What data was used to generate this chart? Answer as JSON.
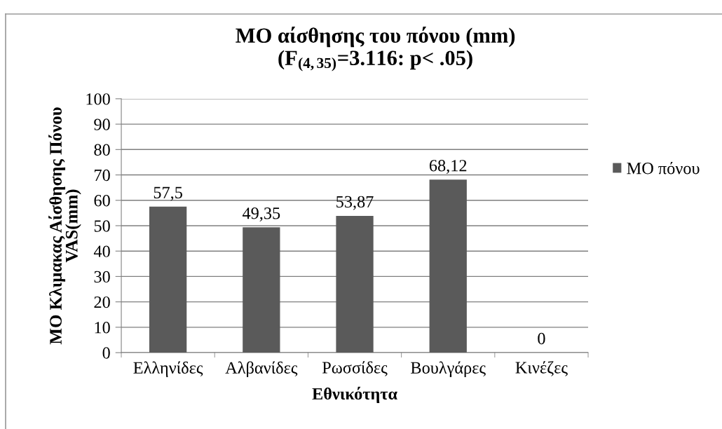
{
  "chart_data": {
    "type": "bar",
    "title": "ΜΟ αίσθησης του πόνου (mm)\n(F$_{(4,35)}$=3.116: p< .05)",
    "xlabel": "Εθνικότητα",
    "ylabel": "ΜΟ Κλιμακας Αίσθησης Πόνου\nVAS(mm)",
    "categories": [
      "Ελληνίδες",
      "Αλβανίδες",
      "Ρωσσίδες",
      "Βουλγάρες",
      "Κινέζες"
    ],
    "series": [
      {
        "name": "ΜΟ πόνου",
        "color": "#5a5a5a",
        "values": [
          57.5,
          49.35,
          53.87,
          68.12,
          0
        ],
        "value_labels": [
          "57,5",
          "49,35",
          "53,87",
          "68,12",
          "0"
        ]
      }
    ],
    "ylim": [
      0,
      100
    ],
    "yticks": [
      0,
      10,
      20,
      30,
      40,
      50,
      60,
      70,
      80,
      90,
      100
    ],
    "grid": "y",
    "legend": "right"
  }
}
